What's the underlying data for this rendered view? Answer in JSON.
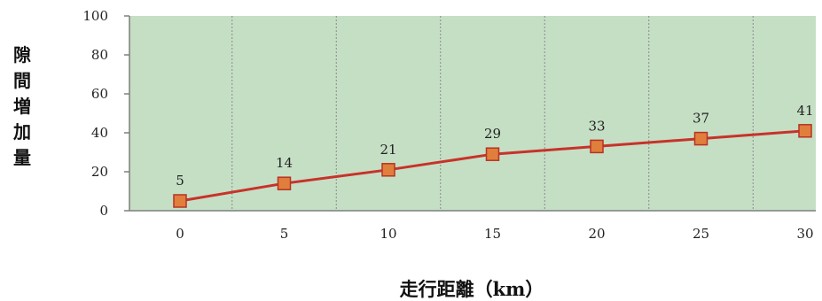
{
  "chart_data": {
    "type": "line",
    "x": [
      0,
      5,
      10,
      15,
      20,
      25,
      30
    ],
    "series": [
      {
        "values": [
          5,
          14,
          21,
          29,
          33,
          37,
          41
        ]
      }
    ],
    "data_labels": [
      "5",
      "14",
      "21",
      "29",
      "33",
      "37",
      "41"
    ],
    "xlabel": "走行距離（km）",
    "ylabel": "隙間増加量",
    "ylim": [
      0,
      100
    ],
    "yticks": [
      "0",
      "20",
      "40",
      "60",
      "80",
      "100"
    ],
    "xticks": [
      "0",
      "5",
      "10",
      "15",
      "20",
      "25",
      "30"
    ],
    "grid": "vertical dashed",
    "legend": "none",
    "colors": {
      "plot_background": "#c5dfc5",
      "line": "#c8322a",
      "marker_fill": "#e07e3c",
      "marker_stroke": "#b83225",
      "grid": "#8a8a8a",
      "axis": "#7f7f7f"
    }
  }
}
